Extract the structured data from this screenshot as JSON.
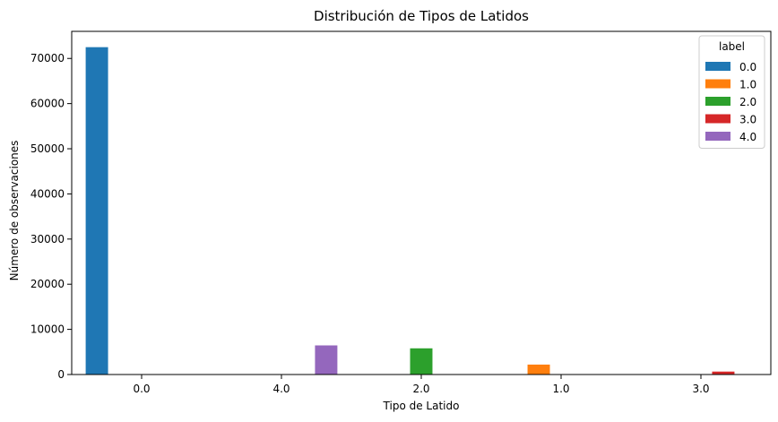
{
  "chart_data": {
    "type": "bar",
    "title": "Distribución de Tipos de Latidos",
    "xlabel": "Tipo de Latido",
    "ylabel": "Número de observaciones",
    "categories": [
      "0.0",
      "4.0",
      "2.0",
      "1.0",
      "3.0"
    ],
    "ylim": [
      0,
      76000
    ],
    "yticks": [
      0,
      10000,
      20000,
      30000,
      40000,
      50000,
      60000,
      70000
    ],
    "grid": false,
    "legend": {
      "title": "label",
      "placement": "top-right"
    },
    "series": [
      {
        "name": "0.0",
        "color": "#1f77b4",
        "values": [
          72500,
          0,
          0,
          0,
          0
        ]
      },
      {
        "name": "1.0",
        "color": "#ff7f0e",
        "values": [
          0,
          0,
          0,
          2200,
          0
        ]
      },
      {
        "name": "2.0",
        "color": "#2ca02c",
        "values": [
          0,
          0,
          5800,
          0,
          0
        ]
      },
      {
        "name": "3.0",
        "color": "#d62728",
        "values": [
          0,
          0,
          0,
          0,
          650
        ]
      },
      {
        "name": "4.0",
        "color": "#9467bd",
        "values": [
          0,
          6450,
          0,
          0,
          0
        ]
      }
    ]
  }
}
